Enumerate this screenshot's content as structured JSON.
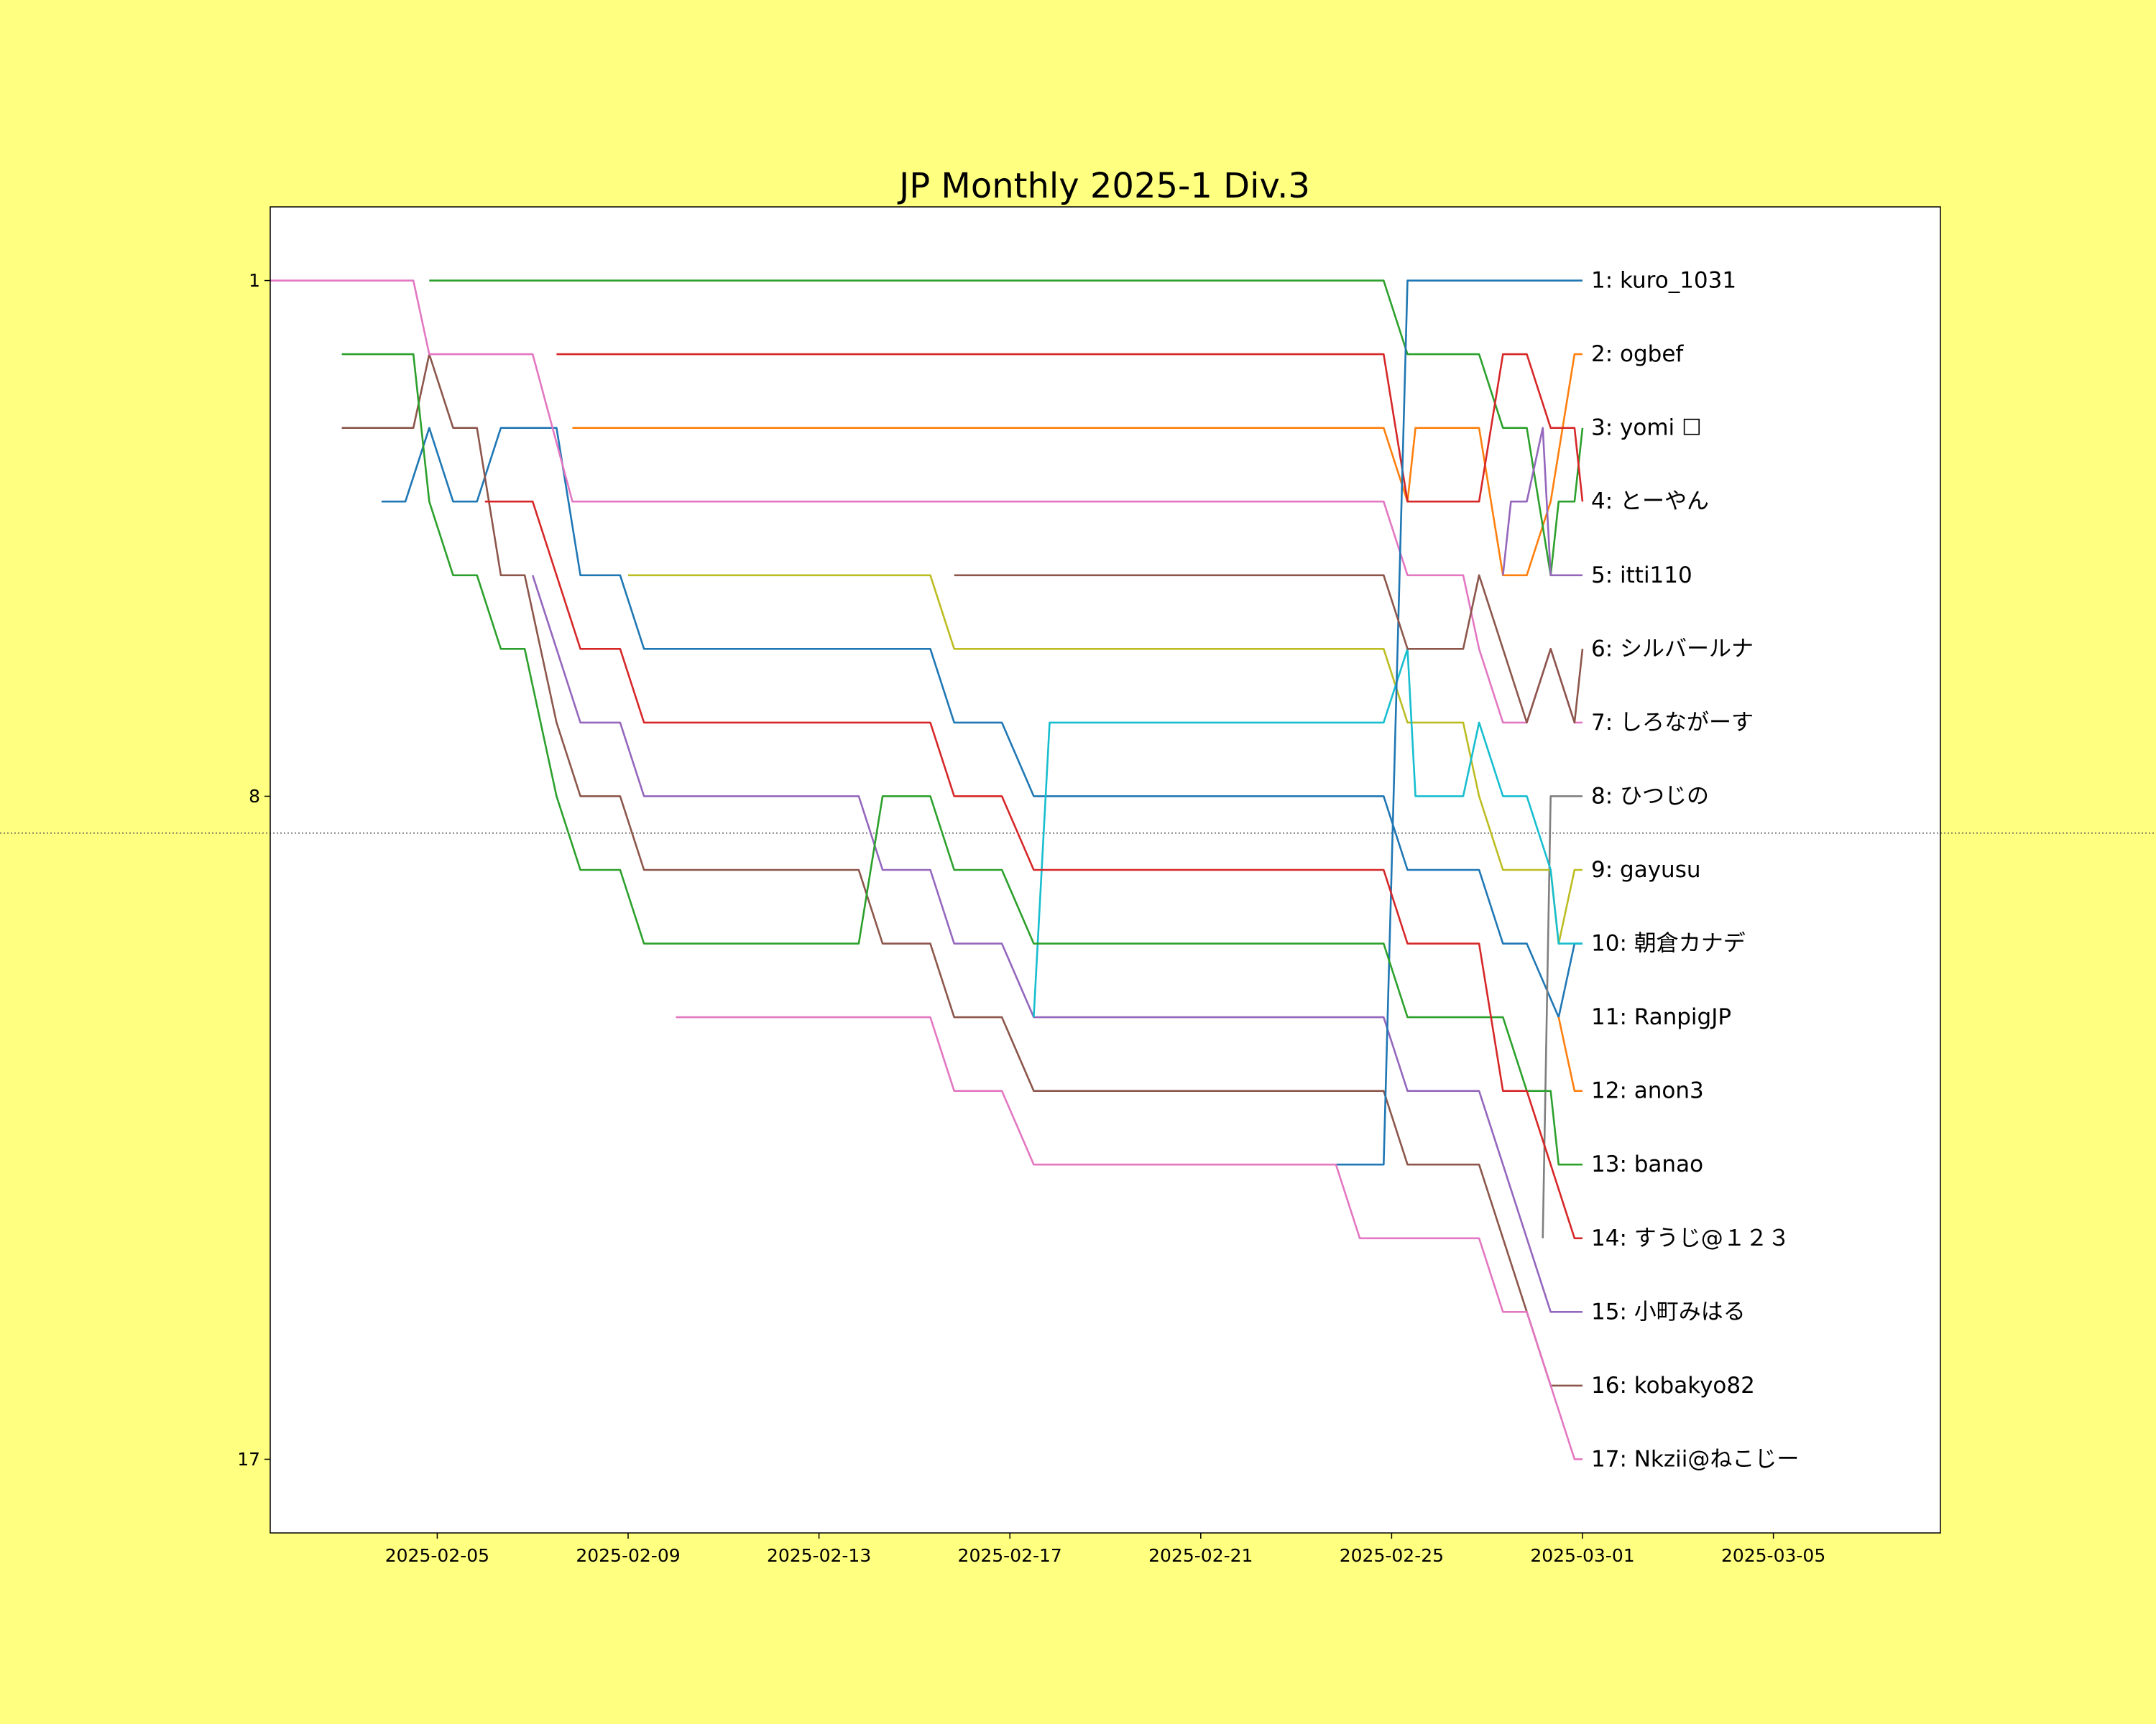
{
  "chart_data": {
    "type": "line",
    "title": "JP Monthly 2025-1 Div.3",
    "x_axis": {
      "type": "date",
      "range": [
        "2025-02-01T12:00",
        "2025-03-08T12:00"
      ],
      "ticks": [
        "2025-02-05",
        "2025-02-09",
        "2025-02-13",
        "2025-02-17",
        "2025-02-21",
        "2025-02-25",
        "2025-03-01",
        "2025-03-05"
      ]
    },
    "y_axis": {
      "inverted": true,
      "range": [
        18,
        0
      ],
      "ticks": [
        "1",
        "8",
        "17"
      ]
    },
    "threshold_line": {
      "y": 8.5,
      "style": "dotted",
      "color": "#555555"
    },
    "grid": false,
    "legend": "none; series labels at line ends",
    "series": [
      {
        "name": "kuro_1031",
        "color": "#1f77b4",
        "label": "1: kuro_1031",
        "points": [
          [
            "2025-02-03T20:00",
            4
          ],
          [
            "2025-02-04T08:00",
            4
          ],
          [
            "2025-02-04T20:00",
            3
          ],
          [
            "2025-02-05T08:00",
            4
          ],
          [
            "2025-02-05T20:00",
            4
          ],
          [
            "2025-02-06T08:00",
            3
          ],
          [
            "2025-02-07T12:00",
            3
          ],
          [
            "2025-02-08T00:00",
            5
          ],
          [
            "2025-02-08T20:00",
            5
          ],
          [
            "2025-02-09T08:00",
            6
          ],
          [
            "2025-02-15T08:00",
            6
          ],
          [
            "2025-02-15T20:00",
            7
          ],
          [
            "2025-02-16T20:00",
            7
          ],
          [
            "2025-02-17T12:00",
            8
          ],
          [
            "2025-02-24T20:00",
            8
          ],
          [
            "2025-02-25T08:00",
            9
          ],
          [
            "2025-02-26T20:00",
            9
          ],
          [
            "2025-02-27T08:00",
            10
          ],
          [
            "2025-02-27T20:00",
            10
          ],
          [
            "2025-02-28T12:00",
            11
          ],
          [
            "2025-02-28T20:00",
            10
          ],
          [
            "2025-03-01T00:00",
            10
          ]
        ]
      },
      {
        "name": "ogbef",
        "color": "#ff7f0e",
        "label": "2: ogbef",
        "points": [
          [
            "2025-02-07T20:00",
            3
          ],
          [
            "2025-02-24T20:00",
            3
          ],
          [
            "2025-02-25T08:00",
            4
          ],
          [
            "2025-02-25T12:00",
            3
          ],
          [
            "2025-02-26T20:00",
            3
          ],
          [
            "2025-02-27T08:00",
            5
          ],
          [
            "2025-02-27T20:00",
            5
          ],
          [
            "2025-02-28T08:00",
            4
          ],
          [
            "2025-02-28T20:00",
            2
          ],
          [
            "2025-03-01T00:00",
            2
          ]
        ]
      },
      {
        "name": "yomi ☐",
        "color": "#2ca02c",
        "label": "3: yomi ☐",
        "points": [
          [
            "2025-02-04T20:00",
            1
          ],
          [
            "2025-02-24T20:00",
            1
          ],
          [
            "2025-02-25T08:00",
            2
          ],
          [
            "2025-02-26T20:00",
            2
          ],
          [
            "2025-02-27T08:00",
            3
          ],
          [
            "2025-02-27T20:00",
            3
          ],
          [
            "2025-02-28T08:00",
            5
          ],
          [
            "2025-02-28T12:00",
            4
          ],
          [
            "2025-02-28T20:00",
            4
          ],
          [
            "2025-03-01T00:00",
            3
          ]
        ]
      },
      {
        "name": "とーやん",
        "color": "#d62728",
        "label": "4: とーやん",
        "points": [
          [
            "2025-02-07T12:00",
            2
          ],
          [
            "2025-02-24T20:00",
            2
          ],
          [
            "2025-02-25T08:00",
            4
          ],
          [
            "2025-02-26T20:00",
            4
          ],
          [
            "2025-02-27T08:00",
            2
          ],
          [
            "2025-02-27T20:00",
            2
          ],
          [
            "2025-02-28T08:00",
            3
          ],
          [
            "2025-02-28T20:00",
            3
          ],
          [
            "2025-03-01T00:00",
            4
          ]
        ]
      },
      {
        "name": "itti110",
        "color": "#9467bd",
        "label": "5: itti110",
        "points": [
          [
            "2025-02-07T00:00",
            5
          ],
          [
            "2025-02-07T12:00",
            6
          ],
          [
            "2025-02-08T00:00",
            7
          ],
          [
            "2025-02-08T20:00",
            7
          ],
          [
            "2025-02-09T08:00",
            8
          ],
          [
            "2025-02-13T20:00",
            8
          ],
          [
            "2025-02-14T08:00",
            9
          ],
          [
            "2025-02-15T08:00",
            9
          ],
          [
            "2025-02-15T20:00",
            10
          ],
          [
            "2025-02-16T20:00",
            10
          ],
          [
            "2025-02-17T12:00",
            11
          ],
          [
            "2025-02-24T20:00",
            11
          ],
          [
            "2025-02-25T08:00",
            12
          ],
          [
            "2025-02-26T20:00",
            12
          ],
          [
            "2025-02-27T08:00",
            13
          ],
          [
            "2025-02-27T20:00",
            14
          ],
          [
            "2025-02-28T08:00",
            15
          ],
          [
            "2025-02-28T20:00",
            15
          ],
          [
            "2025-03-01T00:00",
            15
          ]
        ]
      },
      {
        "name": "シルバールナ",
        "color": "#8c564b",
        "label": "6: シルバールナ",
        "points": [
          [
            "2025-02-03T00:00",
            3
          ],
          [
            "2025-02-04T12:00",
            3
          ],
          [
            "2025-02-04T20:00",
            2
          ],
          [
            "2025-02-05T08:00",
            3
          ],
          [
            "2025-02-05T20:00",
            3
          ],
          [
            "2025-02-06T08:00",
            5
          ],
          [
            "2025-02-06T20:00",
            5
          ],
          [
            "2025-02-07T12:00",
            7
          ],
          [
            "2025-02-08T00:00",
            8
          ],
          [
            "2025-02-08T20:00",
            8
          ],
          [
            "2025-02-09T08:00",
            9
          ],
          [
            "2025-02-13T20:00",
            9
          ],
          [
            "2025-02-14T08:00",
            10
          ],
          [
            "2025-02-15T08:00",
            10
          ],
          [
            "2025-02-15T20:00",
            11
          ],
          [
            "2025-02-16T20:00",
            11
          ],
          [
            "2025-02-17T12:00",
            12
          ],
          [
            "2025-02-24T20:00",
            12
          ],
          [
            "2025-02-25T08:00",
            13
          ],
          [
            "2025-02-26T20:00",
            13
          ],
          [
            "2025-02-27T08:00",
            14
          ],
          [
            "2025-02-27T20:00",
            15
          ],
          [
            "2025-02-28T08:00",
            16
          ],
          [
            "2025-02-28T20:00",
            16
          ],
          [
            "2025-03-01T00:00",
            16
          ]
        ]
      },
      {
        "name": "しろながーす",
        "color": "#e377c2",
        "label": "7: しろながーす",
        "points": [
          [
            "2025-02-01T12:00",
            1
          ],
          [
            "2025-02-04T12:00",
            1
          ],
          [
            "2025-02-04T20:00",
            2
          ],
          [
            "2025-02-07T00:00",
            2
          ],
          [
            "2025-02-07T20:00",
            4
          ],
          [
            "2025-02-24T20:00",
            4
          ],
          [
            "2025-02-25T08:00",
            5
          ],
          [
            "2025-02-26T12:00",
            5
          ],
          [
            "2025-02-26T20:00",
            6
          ],
          [
            "2025-02-27T08:00",
            7
          ],
          [
            "2025-02-27T20:00",
            7
          ],
          [
            "2025-02-28T08:00",
            6
          ],
          [
            "2025-02-28T20:00",
            7
          ],
          [
            "2025-03-01T00:00",
            7
          ]
        ]
      },
      {
        "name": "ひつじの",
        "color": "#7f7f7f",
        "label": "8: ひつじの",
        "points": [
          [
            "2025-02-28T04:00",
            14
          ],
          [
            "2025-02-28T08:00",
            8
          ],
          [
            "2025-02-28T20:00",
            8
          ],
          [
            "2025-03-01T00:00",
            8
          ]
        ]
      },
      {
        "name": "gayusu",
        "color": "#bcbd22",
        "label": "9: gayusu",
        "points": [
          [
            "2025-02-09T00:00",
            5
          ],
          [
            "2025-02-15T08:00",
            5
          ],
          [
            "2025-02-15T20:00",
            6
          ],
          [
            "2025-02-24T20:00",
            6
          ],
          [
            "2025-02-25T08:00",
            7
          ],
          [
            "2025-02-26T12:00",
            7
          ],
          [
            "2025-02-26T20:00",
            8
          ],
          [
            "2025-02-27T08:00",
            9
          ],
          [
            "2025-02-28T08:00",
            9
          ],
          [
            "2025-02-28T12:00",
            10
          ],
          [
            "2025-02-28T20:00",
            9
          ],
          [
            "2025-03-01T00:00",
            9
          ]
        ]
      },
      {
        "name": "朝倉カナデ",
        "color": "#17becf",
        "label": "10: 朝倉カナデ",
        "points": [
          [
            "2025-02-17T12:00",
            11
          ],
          [
            "2025-02-17T20:00",
            7
          ],
          [
            "2025-02-24T20:00",
            7
          ],
          [
            "2025-02-25T08:00",
            6
          ],
          [
            "2025-02-25T12:00",
            8
          ],
          [
            "2025-02-26T12:00",
            8
          ],
          [
            "2025-02-26T20:00",
            7
          ],
          [
            "2025-02-27T08:00",
            8
          ],
          [
            "2025-02-27T20:00",
            8
          ],
          [
            "2025-02-28T08:00",
            9
          ],
          [
            "2025-02-28T12:00",
            10
          ],
          [
            "2025-03-01T00:00",
            10
          ]
        ]
      },
      {
        "name": "RanpigJP",
        "color": "#1f77b4",
        "label": "11: RanpigJP",
        "points": [
          [
            "2025-02-23T20:00",
            13
          ],
          [
            "2025-02-24T20:00",
            13
          ],
          [
            "2025-02-25T08:00",
            1
          ],
          [
            "2025-03-01T00:00",
            1
          ]
        ]
      },
      {
        "name": "anon3",
        "color": "#ff7f0e",
        "label": "12: anon3",
        "points": [
          [
            "2025-02-28T12:00",
            11
          ],
          [
            "2025-02-28T20:00",
            12
          ],
          [
            "2025-03-01T00:00",
            12
          ]
        ]
      },
      {
        "name": "banao",
        "color": "#2ca02c",
        "label": "13: banao",
        "points": [
          [
            "2025-02-03T00:00",
            2
          ],
          [
            "2025-02-04T12:00",
            2
          ],
          [
            "2025-02-04T20:00",
            4
          ],
          [
            "2025-02-05T08:00",
            5
          ],
          [
            "2025-02-05T20:00",
            5
          ],
          [
            "2025-02-06T08:00",
            6
          ],
          [
            "2025-02-06T20:00",
            6
          ],
          [
            "2025-02-07T12:00",
            8
          ],
          [
            "2025-02-08T00:00",
            9
          ],
          [
            "2025-02-08T20:00",
            9
          ],
          [
            "2025-02-09T08:00",
            10
          ],
          [
            "2025-02-13T20:00",
            10
          ],
          [
            "2025-02-14T08:00",
            8
          ],
          [
            "2025-02-15T08:00",
            8
          ],
          [
            "2025-02-15T20:00",
            9
          ],
          [
            "2025-02-16T20:00",
            9
          ],
          [
            "2025-02-17T12:00",
            10
          ],
          [
            "2025-02-24T20:00",
            10
          ],
          [
            "2025-02-25T08:00",
            11
          ],
          [
            "2025-02-26T20:00",
            11
          ],
          [
            "2025-02-27T08:00",
            11
          ],
          [
            "2025-02-27T20:00",
            12
          ],
          [
            "2025-02-28T08:00",
            12
          ],
          [
            "2025-02-28T12:00",
            13
          ],
          [
            "2025-03-01T00:00",
            13
          ]
        ]
      },
      {
        "name": "すうじ@１２３",
        "color": "#d62728",
        "label": "14: すうじ@１２３",
        "points": [
          [
            "2025-02-06T00:00",
            4
          ],
          [
            "2025-02-07T00:00",
            4
          ],
          [
            "2025-02-07T12:00",
            5
          ],
          [
            "2025-02-08T00:00",
            6
          ],
          [
            "2025-02-08T20:00",
            6
          ],
          [
            "2025-02-09T08:00",
            7
          ],
          [
            "2025-02-15T08:00",
            7
          ],
          [
            "2025-02-15T20:00",
            8
          ],
          [
            "2025-02-16T20:00",
            8
          ],
          [
            "2025-02-17T12:00",
            9
          ],
          [
            "2025-02-24T20:00",
            9
          ],
          [
            "2025-02-25T08:00",
            10
          ],
          [
            "2025-02-26T20:00",
            10
          ],
          [
            "2025-02-27T08:00",
            12
          ],
          [
            "2025-02-27T20:00",
            12
          ],
          [
            "2025-02-28T08:00",
            13
          ],
          [
            "2025-02-28T20:00",
            14
          ],
          [
            "2025-03-01T00:00",
            14
          ]
        ]
      },
      {
        "name": "小町みはる",
        "color": "#9467bd",
        "label": "15: 小町みはる",
        "points": [
          [
            "2025-02-27T08:00",
            5
          ],
          [
            "2025-02-27T12:00",
            4
          ],
          [
            "2025-02-27T20:00",
            4
          ],
          [
            "2025-02-28T04:00",
            3
          ],
          [
            "2025-02-28T08:00",
            5
          ],
          [
            "2025-03-01T00:00",
            5
          ]
        ]
      },
      {
        "name": "kobakyo82",
        "color": "#8c564b",
        "label": "16: kobakyo82",
        "points": [
          [
            "2025-02-15T20:00",
            5
          ],
          [
            "2025-02-24T20:00",
            5
          ],
          [
            "2025-02-25T08:00",
            6
          ],
          [
            "2025-02-26T12:00",
            6
          ],
          [
            "2025-02-26T20:00",
            5
          ],
          [
            "2025-02-27T08:00",
            6
          ],
          [
            "2025-02-27T20:00",
            7
          ],
          [
            "2025-02-28T08:00",
            6
          ],
          [
            "2025-02-28T20:00",
            7
          ],
          [
            "2025-03-01T00:00",
            6
          ]
        ]
      },
      {
        "name": "Nkzii@ねこじー",
        "color": "#e377c2",
        "label": "17: Nkzii@ねこじー",
        "points": [
          [
            "2025-02-10T00:00",
            11
          ],
          [
            "2025-02-15T08:00",
            11
          ],
          [
            "2025-02-15T20:00",
            12
          ],
          [
            "2025-02-16T20:00",
            12
          ],
          [
            "2025-02-17T12:00",
            13
          ],
          [
            "2025-02-23T20:00",
            13
          ],
          [
            "2025-02-24T08:00",
            14
          ],
          [
            "2025-02-26T20:00",
            14
          ],
          [
            "2025-02-27T08:00",
            15
          ],
          [
            "2025-02-27T20:00",
            15
          ],
          [
            "2025-02-28T08:00",
            16
          ],
          [
            "2025-02-28T20:00",
            17
          ],
          [
            "2025-03-01T00:00",
            17
          ]
        ]
      }
    ]
  }
}
